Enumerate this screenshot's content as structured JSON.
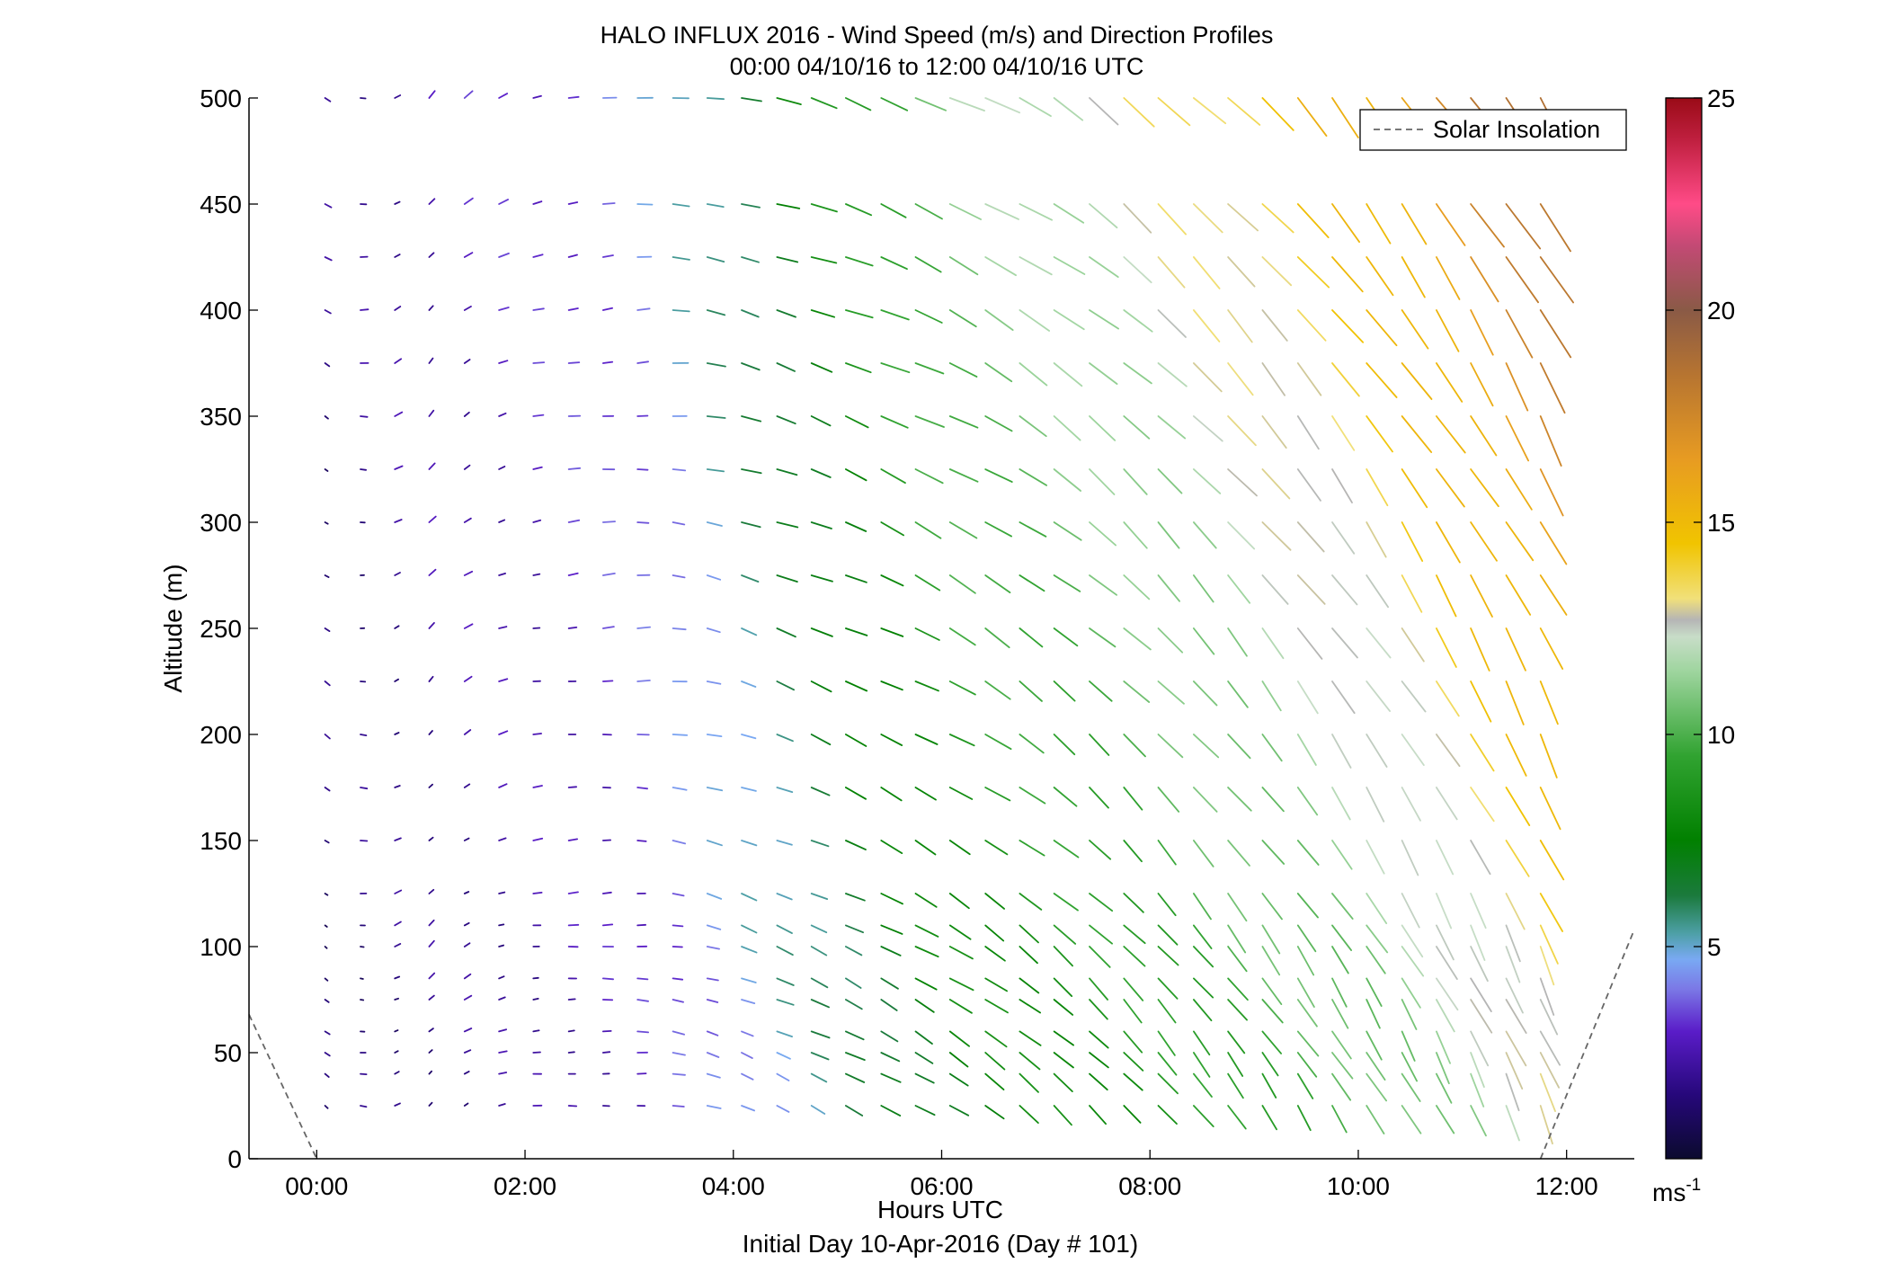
{
  "chart_data": {
    "type": "quiver",
    "title": "HALO INFLUX 2016 - Wind Speed (m/s) and Direction Profiles",
    "subtitle": "00:00 04/10/16 to 12:00 04/10/16  UTC",
    "xlabel": "Hours UTC",
    "xlabel2": "Initial Day 10-Apr-2016 (Day # 101)",
    "ylabel": "Altitude (m)",
    "xlim": [
      -0.65,
      12.65
    ],
    "ylim": [
      0,
      500
    ],
    "xticks": [
      0,
      2,
      4,
      6,
      8,
      10,
      12
    ],
    "xtick_labels": [
      "00:00",
      "02:00",
      "04:00",
      "06:00",
      "08:00",
      "10:00",
      "12:00"
    ],
    "yticks": [
      0,
      50,
      100,
      150,
      200,
      250,
      300,
      350,
      400,
      450,
      500
    ],
    "ytick_labels": [
      "0",
      "50",
      "100",
      "150",
      "200",
      "250",
      "300",
      "350",
      "400",
      "450",
      "500"
    ],
    "colorbar": {
      "lim": [
        0,
        25
      ],
      "ticks": [
        5,
        10,
        15,
        20,
        25
      ],
      "tick_labels": [
        "5",
        "10",
        "15",
        "20",
        "25"
      ],
      "unit_label": "ms",
      "unit_exp": "-1",
      "stops": [
        [
          0,
          "#0b0a2e"
        ],
        [
          1.5,
          "#26087a"
        ],
        [
          3,
          "#5a1cc8"
        ],
        [
          4,
          "#7b78e6"
        ],
        [
          4.7,
          "#79a9f3"
        ],
        [
          5.3,
          "#4ea0a8"
        ],
        [
          6.2,
          "#1b7a3d"
        ],
        [
          7.5,
          "#018000"
        ],
        [
          9.5,
          "#31a331"
        ],
        [
          11.5,
          "#9fd59f"
        ],
        [
          12.3,
          "#c8ddc8"
        ],
        [
          12.7,
          "#b5b5b5"
        ],
        [
          13.2,
          "#f1e07a"
        ],
        [
          14.5,
          "#f1c400"
        ],
        [
          16.5,
          "#e79b22"
        ],
        [
          18.5,
          "#b67431"
        ],
        [
          20,
          "#8a5a46"
        ],
        [
          21.5,
          "#c24a74"
        ],
        [
          22.5,
          "#ff4b87"
        ],
        [
          24,
          "#c02040"
        ],
        [
          25,
          "#9a0b17"
        ]
      ]
    },
    "legend": {
      "location": "top-right",
      "entries": [
        {
          "label": "Solar Insolation",
          "style": "dashed",
          "color": "#666666"
        }
      ]
    },
    "solar_insolation": [
      {
        "x": [
          -0.65,
          0.0
        ],
        "y": [
          68,
          0
        ]
      },
      {
        "x": [
          11.75,
          12.65
        ],
        "y": [
          0,
          108
        ]
      }
    ],
    "grid": false,
    "quiver": {
      "description": "wind speed (m/s) and direction (deg, meteorological) every 20 min at altitudes 25-500 m",
      "times_h": [
        0.08,
        0.42,
        0.75,
        1.08,
        1.42,
        1.75,
        2.08,
        2.42,
        2.75,
        3.08,
        3.42,
        3.75,
        4.08,
        4.42,
        4.75,
        5.08,
        5.42,
        5.75,
        6.08,
        6.42,
        6.75,
        7.08,
        7.42,
        7.75,
        8.08,
        8.42,
        8.75,
        9.08,
        9.42,
        9.75,
        10.08,
        10.42,
        10.75,
        11.08,
        11.42,
        11.75
      ],
      "altitudes_m": [
        25,
        40,
        50,
        60,
        75,
        85,
        100,
        110,
        125,
        150,
        175,
        200,
        225,
        250,
        275,
        300,
        325,
        350,
        375,
        400,
        425,
        450,
        500
      ],
      "speed_profile": [
        {
          "t": 0,
          "speed": 1.5,
          "dir": 315
        },
        {
          "t": 1,
          "speed": 2.2,
          "dir": 225
        },
        {
          "t": 2,
          "speed": 2.6,
          "dir": 265
        },
        {
          "t": 3,
          "speed": 3.5,
          "dir": 272
        },
        {
          "t": 4,
          "speed": 5.5,
          "dir": 292
        },
        {
          "t": 6,
          "speed": 9.5,
          "dir": 303
        },
        {
          "t": 8,
          "speed": 11.0,
          "dir": 320
        },
        {
          "t": 10,
          "speed": 13.0,
          "dir": 330
        },
        {
          "t": 12,
          "speed": 16.5,
          "dir": 338
        }
      ]
    }
  }
}
